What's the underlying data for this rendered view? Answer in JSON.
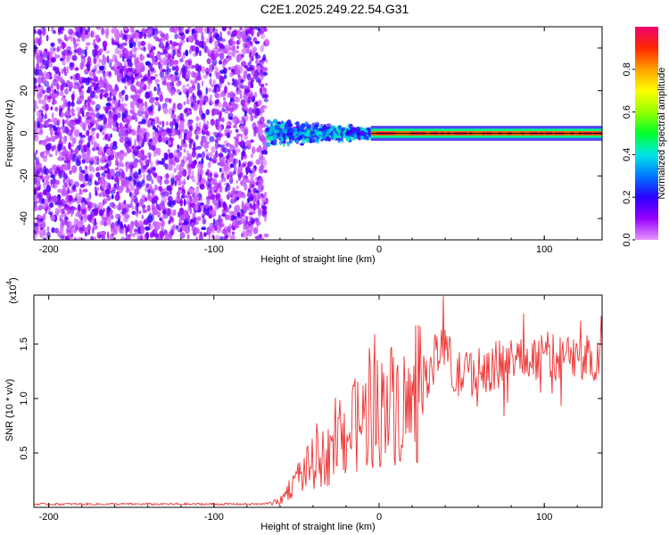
{
  "title": "C2E1.2025.249.22.54.G31",
  "colors": {
    "snr_line": "#ee3333",
    "axis": "#000000"
  },
  "chart_data": [
    {
      "type": "heatmap",
      "xlabel": "Height of straight line (km)",
      "ylabel": "Frequency (Hz)",
      "xlim": [
        -209,
        135
      ],
      "ylim": [
        -50,
        50
      ],
      "x_ticks": [
        -200,
        -100,
        0,
        100
      ],
      "y_ticks": [
        -40,
        -20,
        0,
        20,
        40
      ],
      "colorbar": {
        "label": "Normalized spectral amplitude",
        "ticks": [
          "0.0",
          "0.2",
          "0.4",
          "0.6",
          "0.8"
        ],
        "range": [
          0,
          1
        ]
      },
      "features": [
        {
          "x_range": [
            -209,
            -68
          ],
          "y_range": [
            -50,
            50
          ],
          "amplitude": 0.1,
          "description_value": "broadband noise"
        },
        {
          "x_range": [
            -68,
            -5
          ],
          "y_range": [
            -8,
            8
          ],
          "amplitude": 0.35
        },
        {
          "x_range": [
            -5,
            135
          ],
          "y_range": [
            -1.5,
            1.5
          ],
          "amplitude": 0.95
        }
      ]
    },
    {
      "type": "line",
      "xlabel": "Height of straight line (km)",
      "ylabel": "SNR (10 * v/v)",
      "y_multiplier": "(x10",
      "y_multiplier_exp": "4",
      "y_multiplier_close": ")",
      "xlim": [
        -209,
        135
      ],
      "ylim": [
        0,
        1.95
      ],
      "x_ticks": [
        -200,
        -100,
        0,
        100
      ],
      "y_ticks": [
        "0.5",
        "1.0",
        "1.5"
      ],
      "y_tick_values": [
        0.5,
        1.0,
        1.5
      ],
      "series_envelope": [
        {
          "x": -209,
          "y": 0.03
        },
        {
          "x": -70,
          "y": 0.03
        },
        {
          "x": -60,
          "y": 0.06
        },
        {
          "x": -50,
          "y": 0.3
        },
        {
          "x": -40,
          "y": 0.45
        },
        {
          "x": -30,
          "y": 0.55
        },
        {
          "x": -20,
          "y": 0.75
        },
        {
          "x": -10,
          "y": 0.9
        },
        {
          "x": 0,
          "y": 1.0
        },
        {
          "x": 10,
          "y": 1.1
        },
        {
          "x": 20,
          "y": 1.0
        },
        {
          "x": 30,
          "y": 1.25
        },
        {
          "x": 40,
          "y": 1.55
        },
        {
          "x": 45,
          "y": 1.2
        },
        {
          "x": 60,
          "y": 1.25
        },
        {
          "x": 80,
          "y": 1.35
        },
        {
          "x": 100,
          "y": 1.4
        },
        {
          "x": 120,
          "y": 1.35
        },
        {
          "x": 135,
          "y": 1.4
        }
      ]
    }
  ]
}
